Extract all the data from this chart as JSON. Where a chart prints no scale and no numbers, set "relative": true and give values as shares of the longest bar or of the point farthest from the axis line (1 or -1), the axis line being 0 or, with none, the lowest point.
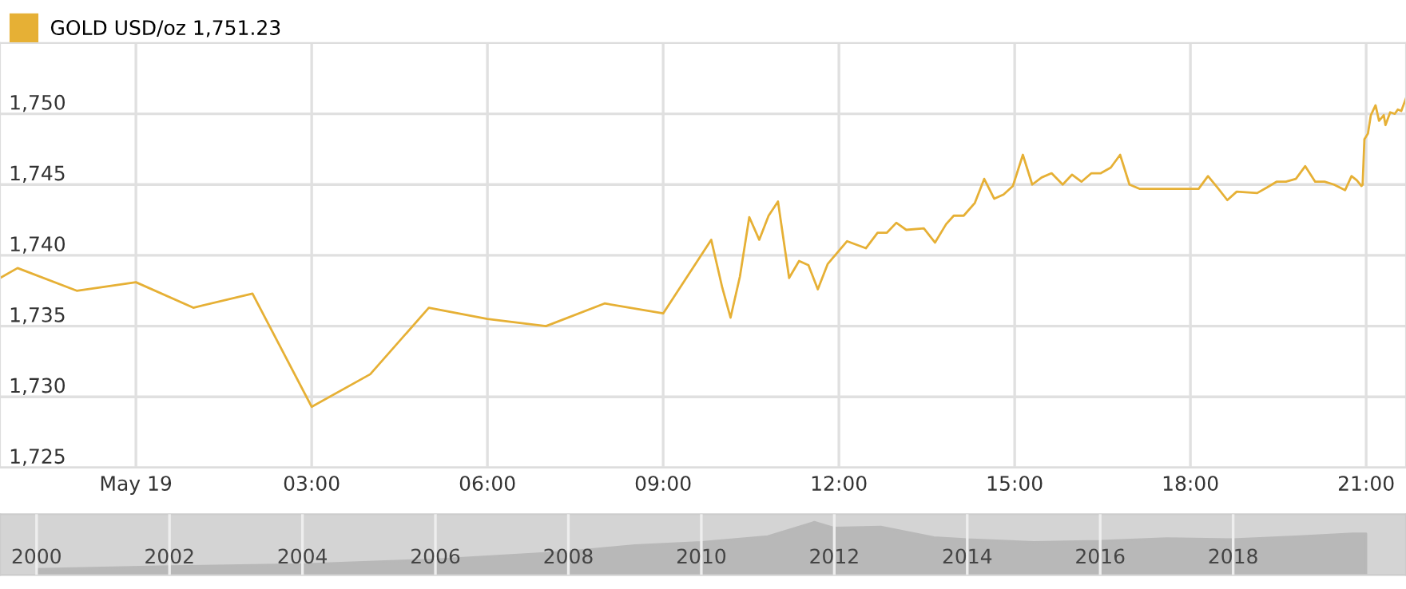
{
  "chart_data": [
    {
      "type": "line",
      "legend": "top left",
      "grid": true,
      "marker": "none",
      "line_style": "solid",
      "xlim": [
        -2.32,
        21.68
      ],
      "ylim": [
        1725,
        1755
      ],
      "xticks": [
        {
          "value": 0,
          "label": "May 19"
        },
        {
          "value": 3,
          "label": "03:00"
        },
        {
          "value": 6,
          "label": "06:00"
        },
        {
          "value": 9,
          "label": "09:00"
        },
        {
          "value": 12,
          "label": "12:00"
        },
        {
          "value": 15,
          "label": "15:00"
        },
        {
          "value": 18,
          "label": "18:00"
        },
        {
          "value": 21,
          "label": "21:00"
        }
      ],
      "yticks": [
        {
          "value": 1725,
          "label": "1,725"
        },
        {
          "value": 1730,
          "label": "1,730"
        },
        {
          "value": 1735,
          "label": "1,735"
        },
        {
          "value": 1740,
          "label": "1,740"
        },
        {
          "value": 1745,
          "label": "1,745"
        },
        {
          "value": 1750,
          "label": "1,750"
        }
      ],
      "series": [
        {
          "name": "GOLD USD/oz 1,751.23",
          "color": "#e6b035",
          "x": [
            -2.32,
            -2.02,
            -1.01,
            0,
            0.98,
            1.99,
            3.0,
            4.0,
            5.0,
            6.0,
            7.0,
            8.0,
            9.0,
            9.82,
            10.01,
            10.15,
            10.31,
            10.47,
            10.64,
            10.8,
            10.96,
            11.15,
            11.32,
            11.48,
            11.64,
            11.81,
            12.14,
            12.46,
            12.66,
            12.82,
            12.98,
            13.15,
            13.45,
            13.64,
            13.83,
            13.96,
            14.13,
            14.32,
            14.48,
            14.65,
            14.81,
            14.97,
            15.14,
            15.3,
            15.46,
            15.63,
            15.82,
            15.98,
            16.14,
            16.31,
            16.47,
            16.64,
            16.8,
            16.96,
            17.13,
            18.14,
            18.3,
            18.46,
            18.63,
            18.79,
            19.14,
            19.31,
            19.47,
            19.63,
            19.8,
            19.96,
            20.13,
            20.29,
            20.45,
            20.64,
            20.75,
            20.84,
            20.92,
            20.94,
            20.97,
            21.03,
            21.08,
            21.16,
            21.22,
            21.3,
            21.33,
            21.41,
            21.49,
            21.54,
            21.6,
            21.68
          ],
          "values": [
            1738.4,
            1739.1,
            1737.5,
            1738.1,
            1736.3,
            1737.3,
            1729.3,
            1731.6,
            1736.3,
            1735.5,
            1735.0,
            1736.6,
            1735.9,
            1741.1,
            1737.7,
            1735.6,
            1738.5,
            1742.7,
            1741.1,
            1742.8,
            1743.8,
            1738.4,
            1739.6,
            1739.3,
            1737.6,
            1739.4,
            1741.0,
            1740.5,
            1741.6,
            1741.6,
            1742.3,
            1741.8,
            1741.9,
            1740.9,
            1742.2,
            1742.8,
            1742.8,
            1743.7,
            1745.4,
            1744.0,
            1744.3,
            1744.9,
            1747.1,
            1745.0,
            1745.5,
            1745.8,
            1745.0,
            1745.7,
            1745.2,
            1745.8,
            1745.8,
            1746.2,
            1747.1,
            1745.0,
            1744.7,
            1744.7,
            1745.6,
            1744.8,
            1743.9,
            1744.5,
            1744.4,
            1744.8,
            1745.2,
            1745.2,
            1745.4,
            1746.3,
            1745.2,
            1745.2,
            1745.0,
            1744.6,
            1745.6,
            1745.3,
            1744.9,
            1745.0,
            1748.2,
            1748.6,
            1749.9,
            1750.6,
            1749.5,
            1749.9,
            1749.2,
            1750.1,
            1750.0,
            1750.3,
            1750.2,
            1751.1
          ]
        }
      ]
    },
    {
      "type": "area",
      "relative": true,
      "grid": "x",
      "xlim": [
        1999.45,
        2020.6
      ],
      "xticks": [
        2000,
        2002,
        2004,
        2006,
        2008,
        2010,
        2012,
        2014,
        2016,
        2018
      ],
      "series": [
        {
          "color": "#b8b8b8",
          "x": [
            2000,
            2002,
            2004,
            2006,
            2007.5,
            2008,
            2009,
            2010,
            2011,
            2011.7,
            2012,
            2012.7,
            2013.5,
            2014,
            2015,
            2016,
            2017,
            2018,
            2019,
            2019.8,
            2020
          ],
          "values": [
            0.11,
            0.16,
            0.2,
            0.29,
            0.4,
            0.44,
            0.56,
            0.62,
            0.73,
            1,
            0.89,
            0.91,
            0.71,
            0.67,
            0.62,
            0.64,
            0.69,
            0.67,
            0.73,
            0.78,
            0.78
          ]
        }
      ]
    }
  ]
}
